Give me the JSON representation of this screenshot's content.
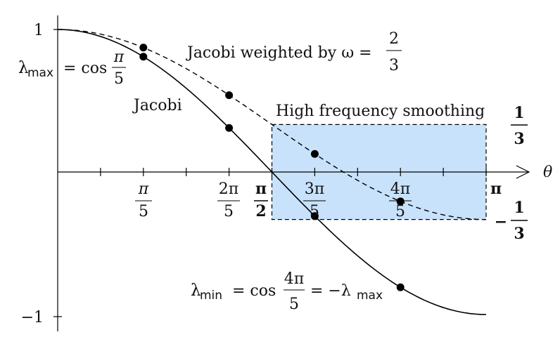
{
  "theta_label": "θ",
  "colors": {
    "band_fill": "#c9e2fb",
    "curve": "#000000",
    "dot": "#000000"
  },
  "y_ticks": {
    "top": "1",
    "bottom": "−1"
  },
  "x_ticks": [
    {
      "id": "pi5",
      "num": "π",
      "den": "5"
    },
    {
      "id": "2pi5",
      "num": "2π",
      "den": "5"
    },
    {
      "id": "pi2",
      "num": "π",
      "den": "2"
    },
    {
      "id": "3pi5",
      "num": "3π",
      "den": "5"
    },
    {
      "id": "4pi5",
      "num": "4π",
      "den": "5"
    },
    {
      "id": "pi",
      "num": "π"
    }
  ],
  "band": {
    "title": "High frequency smoothing",
    "upper_num": "1",
    "upper_den": "3",
    "lower_sign": "−",
    "lower_num": "1",
    "lower_den": "3",
    "theta_range": [
      "π/2",
      "π"
    ],
    "value_range": [
      -0.3333,
      0.3333
    ]
  },
  "jacobi_label": "Jacobi",
  "weighted_label": {
    "text": "Jacobi weighted by ω =",
    "num": "2",
    "den": "3"
  },
  "lambda_max": {
    "lambda": "λ",
    "sub": "max",
    "eq": "= cos",
    "num": "π",
    "den": "5"
  },
  "lambda_min": {
    "lambda": "λ",
    "sub": "min",
    "eq": "= cos",
    "num": "4π",
    "den": "5",
    "rhs": "= −λ",
    "rhs_sub": "max"
  },
  "chart_data": {
    "type": "line",
    "xlabel": "θ",
    "xlim": [
      0,
      3.14159
    ],
    "ylim": [
      -1,
      1
    ],
    "series": [
      {
        "name": "Jacobi",
        "function": "cos(θ)",
        "style": "solid"
      },
      {
        "name": "Jacobi weighted by ω = 2/3",
        "function": "(1 + 2cos(θ))/3",
        "style": "dashed"
      }
    ],
    "points": [
      {
        "series": "Jacobi",
        "x": 0.6283,
        "y": 0.809
      },
      {
        "series": "Jacobi",
        "x": 1.2566,
        "y": 0.309
      },
      {
        "series": "Jacobi",
        "x": 1.885,
        "y": -0.309
      },
      {
        "series": "Jacobi",
        "x": 2.5133,
        "y": -0.809
      },
      {
        "series": "Jacobi weighted by ω = 2/3",
        "x": 0.6283,
        "y": 0.873
      },
      {
        "series": "Jacobi weighted by ω = 2/3",
        "x": 1.2566,
        "y": 0.539
      },
      {
        "series": "Jacobi weighted by ω = 2/3",
        "x": 1.885,
        "y": 0.127
      },
      {
        "series": "Jacobi weighted by ω = 2/3",
        "x": 2.5133,
        "y": -0.206
      }
    ]
  }
}
